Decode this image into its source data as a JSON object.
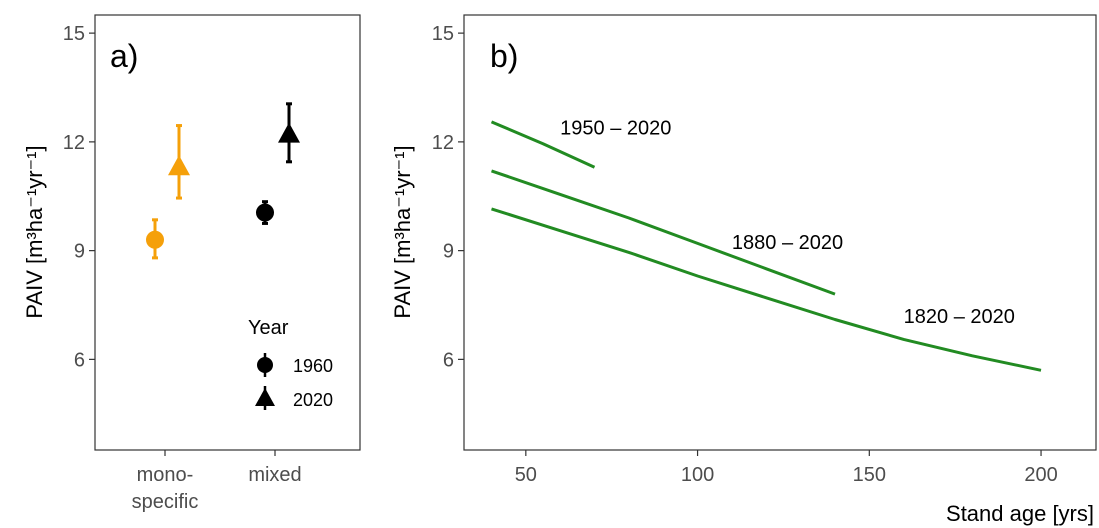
{
  "chart_data": [
    {
      "panel": "a)",
      "type": "scatter",
      "ylabel_main": "PAIV",
      "ylabel_unit": "[m³ha⁻¹yr⁻¹]",
      "ylim": [
        3.5,
        15.5
      ],
      "yticks": [
        6,
        9,
        12,
        15
      ],
      "categories": [
        {
          "line1": "mono-",
          "line2": "specific"
        },
        {
          "line1": "mixed",
          "line2": ""
        }
      ],
      "legend": {
        "title": "Year",
        "placement": "bottom-right",
        "entries": [
          {
            "label": "1960",
            "shape": "circle"
          },
          {
            "label": "2020",
            "shape": "triangle"
          }
        ]
      },
      "points": [
        {
          "category": 0,
          "year": "1960",
          "y": 9.3,
          "ymin": 8.8,
          "ymax": 9.85,
          "color": "#f5a00a"
        },
        {
          "category": 0,
          "year": "2020",
          "y": 11.3,
          "ymin": 10.45,
          "ymax": 12.45,
          "color": "#f5a00a"
        },
        {
          "category": 1,
          "year": "1960",
          "y": 10.05,
          "ymin": 9.75,
          "ymax": 10.35,
          "color": "#000000"
        },
        {
          "category": 1,
          "year": "2020",
          "y": 12.2,
          "ymin": 11.45,
          "ymax": 13.05,
          "color": "#000000"
        }
      ]
    },
    {
      "panel": "b)",
      "type": "line",
      "xlabel": "Stand age [yrs]",
      "ylabel_main": "PAIV",
      "ylabel_unit": "[m³ha⁻¹yr⁻¹]",
      "xlim": [
        32,
        216
      ],
      "ylim": [
        3.5,
        15.5
      ],
      "xticks": [
        50,
        100,
        150,
        200
      ],
      "yticks": [
        6,
        9,
        12,
        15
      ],
      "line_color": "#228b22",
      "series": [
        {
          "name": "1950 – 2020",
          "x": [
            40,
            55,
            70
          ],
          "y": [
            12.55,
            11.95,
            11.3
          ],
          "label_at": [
            60,
            12.2
          ]
        },
        {
          "name": "1880 – 2020",
          "x": [
            40,
            60,
            80,
            100,
            120,
            140
          ],
          "y": [
            11.2,
            10.55,
            9.9,
            9.2,
            8.5,
            7.8
          ],
          "label_at": [
            110,
            9.05
          ]
        },
        {
          "name": "1820 – 2020",
          "x": [
            40,
            60,
            80,
            100,
            120,
            140,
            160,
            180,
            200
          ],
          "y": [
            10.15,
            9.55,
            8.95,
            8.3,
            7.7,
            7.1,
            6.55,
            6.1,
            5.7
          ],
          "label_at": [
            160,
            7.0
          ]
        }
      ]
    }
  ]
}
